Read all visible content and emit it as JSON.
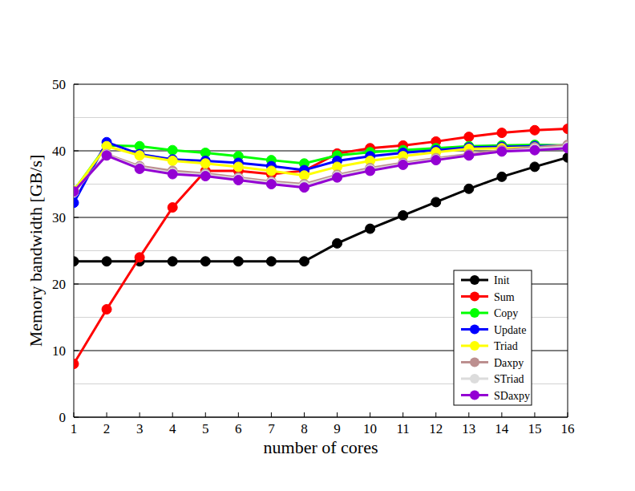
{
  "chart_data": {
    "type": "line",
    "x_label": "number of cores",
    "y_label": "Memory bandwidth [GB/s]",
    "x": [
      1,
      2,
      3,
      4,
      5,
      6,
      7,
      8,
      9,
      10,
      11,
      12,
      13,
      14,
      15,
      16
    ],
    "xlim": [
      1,
      16
    ],
    "xticks": [
      1,
      2,
      3,
      4,
      5,
      6,
      7,
      8,
      9,
      10,
      11,
      12,
      13,
      14,
      15,
      16
    ],
    "ylim": [
      0,
      50
    ],
    "yticks": [
      0,
      10,
      20,
      30,
      40,
      50
    ],
    "grid": true,
    "legend": "lower right",
    "marker": "circle",
    "series": [
      {
        "name": "Init",
        "color": "#000000",
        "values": [
          23.4,
          23.4,
          23.4,
          23.4,
          23.4,
          23.4,
          23.4,
          23.4,
          26.1,
          28.3,
          30.3,
          32.3,
          34.3,
          36.1,
          37.6,
          39.0
        ]
      },
      {
        "name": "Sum",
        "color": "#ff0000",
        "values": [
          8.0,
          16.2,
          24.0,
          31.5,
          37.0,
          37.0,
          36.5,
          37.0,
          39.6,
          40.4,
          40.8,
          41.4,
          42.1,
          42.7,
          43.1,
          43.3
        ]
      },
      {
        "name": "Copy",
        "color": "#00ff00",
        "values": [
          34.0,
          40.8,
          40.7,
          40.1,
          39.7,
          39.2,
          38.6,
          38.1,
          39.3,
          39.8,
          40.1,
          40.4,
          40.7,
          40.8,
          40.9,
          40.8
        ]
      },
      {
        "name": "Update",
        "color": "#0000ff",
        "values": [
          32.2,
          41.3,
          39.5,
          38.7,
          38.5,
          38.2,
          37.7,
          37.1,
          38.5,
          39.2,
          39.7,
          40.1,
          40.5,
          40.6,
          40.7,
          40.8
        ]
      },
      {
        "name": "Triad",
        "color": "#ffff00",
        "values": [
          34.0,
          40.7,
          39.3,
          38.5,
          38.1,
          37.6,
          37.0,
          36.3,
          37.6,
          38.5,
          39.2,
          39.8,
          40.3,
          40.4,
          40.5,
          40.5
        ]
      },
      {
        "name": "Daxpy",
        "color": "#bc8f8f",
        "values": [
          33.8,
          39.5,
          37.7,
          37.0,
          36.6,
          36.0,
          35.4,
          35.0,
          36.4,
          37.4,
          38.2,
          38.9,
          39.5,
          40.1,
          40.5,
          40.9
        ]
      },
      {
        "name": "STriad",
        "color": "#dcdcdc",
        "values": [
          33.8,
          39.4,
          37.5,
          36.7,
          36.4,
          35.8,
          35.2,
          34.8,
          36.2,
          37.2,
          38.0,
          38.7,
          39.3,
          39.9,
          40.3,
          40.6
        ]
      },
      {
        "name": "SDaxpy",
        "color": "#9400d3",
        "values": [
          33.9,
          39.3,
          37.3,
          36.5,
          36.2,
          35.6,
          35.0,
          34.5,
          36.0,
          37.0,
          37.9,
          38.6,
          39.3,
          39.9,
          40.1,
          40.4
        ]
      }
    ]
  }
}
